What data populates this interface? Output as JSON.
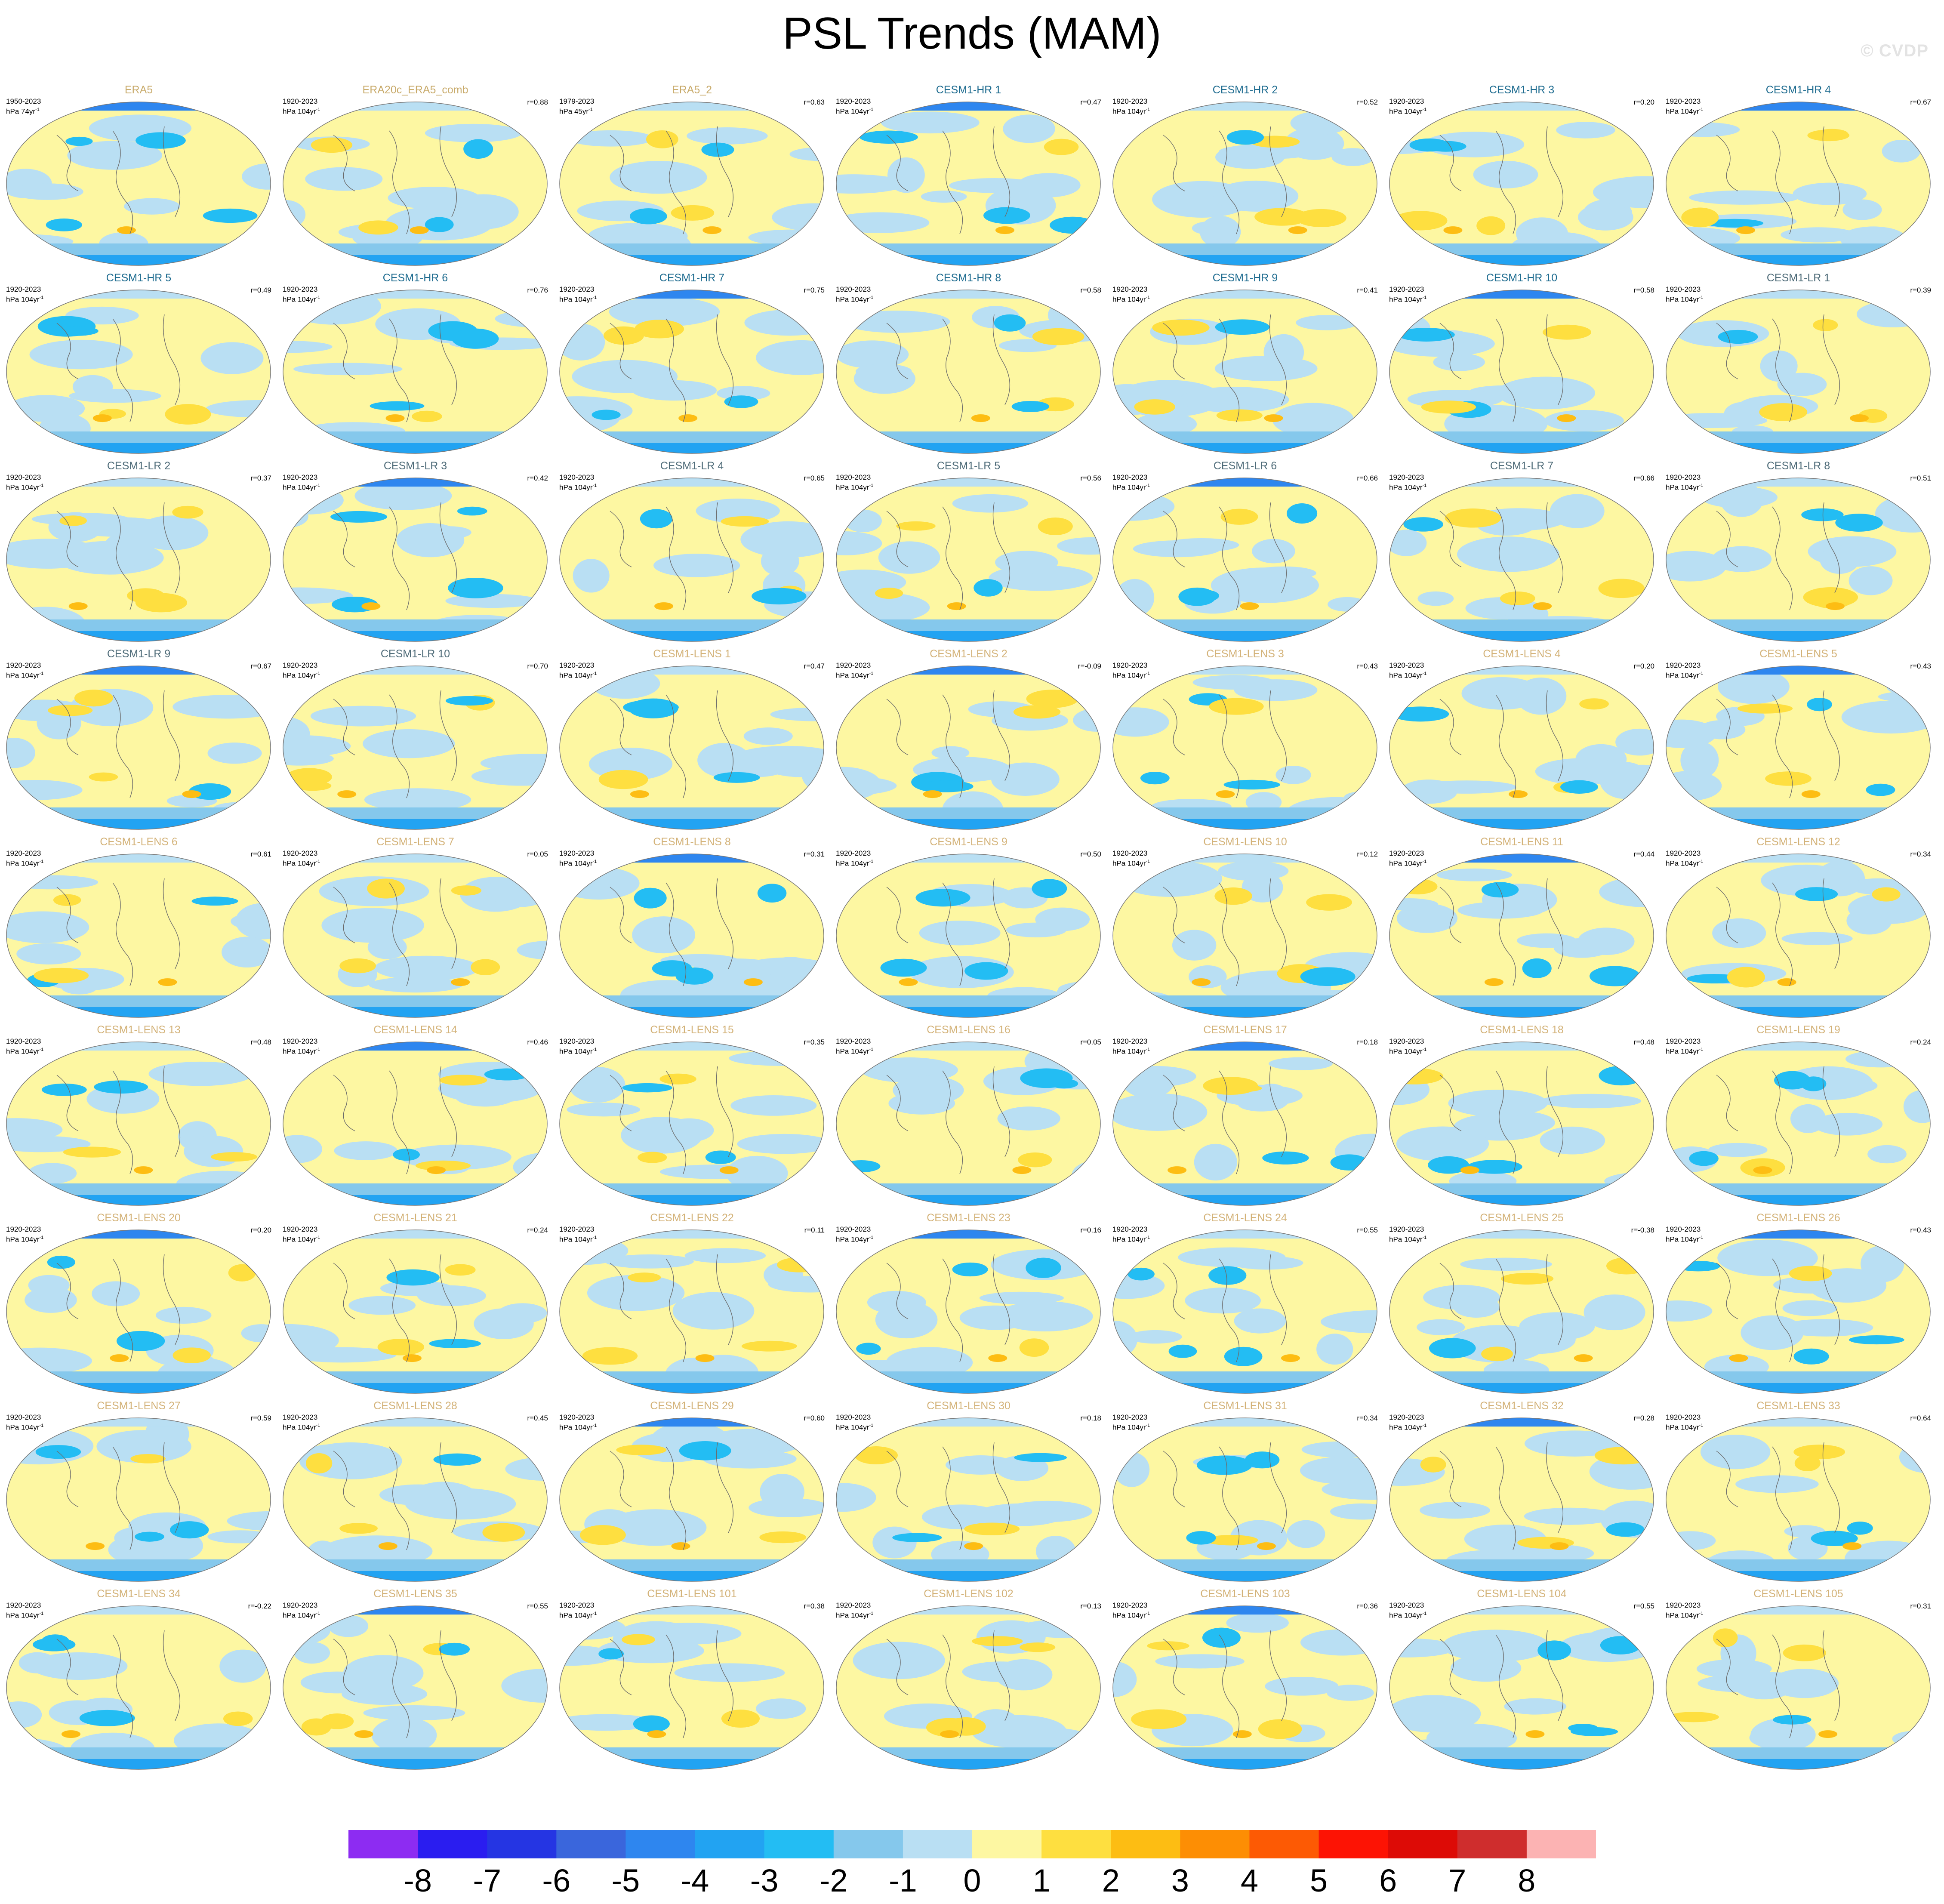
{
  "figure": {
    "title": "PSL Trends (MAM)",
    "watermark": "© CVDP"
  },
  "palette": {
    "levels": [
      "-8",
      "-7",
      "-6",
      "-5",
      "-4",
      "-3",
      "-2",
      "-1",
      "0",
      "1",
      "2",
      "3",
      "4",
      "5",
      "6",
      "7",
      "8"
    ],
    "colors": [
      "#8d2cf2",
      "#2a1df0",
      "#2535e3",
      "#3a66dc",
      "#2e86ef",
      "#22a3f2",
      "#23bdf3",
      "#85c8ec",
      "#b9dff3",
      "#fdf7a2",
      "#fedf40",
      "#fdbd13",
      "#fd8e04",
      "#fd5a04",
      "#fd1304",
      "#dd0b06",
      "#cf2d2d",
      "#fcb3b3"
    ]
  },
  "panels": [
    {
      "title": "ERA5",
      "period": "1950-2023",
      "units": "hPa 74yr",
      "r": "",
      "kind": "obs"
    },
    {
      "title": "ERA20c_ERA5_comb",
      "period": "1920-2023",
      "units": "hPa 104yr",
      "r": "r=0.88",
      "kind": "obs"
    },
    {
      "title": "ERA5_2",
      "period": "1979-2023",
      "units": "hPa 45yr",
      "r": "r=0.63",
      "kind": "obs"
    },
    {
      "title": "CESM1-HR 1",
      "period": "1920-2023",
      "units": "hPa 104yr",
      "r": "r=0.47",
      "kind": "hr"
    },
    {
      "title": "CESM1-HR 2",
      "period": "1920-2023",
      "units": "hPa 104yr",
      "r": "r=0.52",
      "kind": "hr"
    },
    {
      "title": "CESM1-HR 3",
      "period": "1920-2023",
      "units": "hPa 104yr",
      "r": "r=0.20",
      "kind": "hr"
    },
    {
      "title": "CESM1-HR 4",
      "period": "1920-2023",
      "units": "hPa 104yr",
      "r": "r=0.67",
      "kind": "hr"
    },
    {
      "title": "CESM1-HR 5",
      "period": "1920-2023",
      "units": "hPa 104yr",
      "r": "r=0.49",
      "kind": "hr"
    },
    {
      "title": "CESM1-HR 6",
      "period": "1920-2023",
      "units": "hPa 104yr",
      "r": "r=0.76",
      "kind": "hr"
    },
    {
      "title": "CESM1-HR 7",
      "period": "1920-2023",
      "units": "hPa 104yr",
      "r": "r=0.75",
      "kind": "hr"
    },
    {
      "title": "CESM1-HR 8",
      "period": "1920-2023",
      "units": "hPa 104yr",
      "r": "r=0.58",
      "kind": "hr"
    },
    {
      "title": "CESM1-HR 9",
      "period": "1920-2023",
      "units": "hPa 104yr",
      "r": "r=0.41",
      "kind": "hr"
    },
    {
      "title": "CESM1-HR 10",
      "period": "1920-2023",
      "units": "hPa 104yr",
      "r": "r=0.58",
      "kind": "hr"
    },
    {
      "title": "CESM1-LR 1",
      "period": "1920-2023",
      "units": "hPa 104yr",
      "r": "r=0.39",
      "kind": "lr"
    },
    {
      "title": "CESM1-LR 2",
      "period": "1920-2023",
      "units": "hPa 104yr",
      "r": "r=0.37",
      "kind": "lr"
    },
    {
      "title": "CESM1-LR 3",
      "period": "1920-2023",
      "units": "hPa 104yr",
      "r": "r=0.42",
      "kind": "lr"
    },
    {
      "title": "CESM1-LR 4",
      "period": "1920-2023",
      "units": "hPa 104yr",
      "r": "r=0.65",
      "kind": "lr"
    },
    {
      "title": "CESM1-LR 5",
      "period": "1920-2023",
      "units": "hPa 104yr",
      "r": "r=0.56",
      "kind": "lr"
    },
    {
      "title": "CESM1-LR 6",
      "period": "1920-2023",
      "units": "hPa 104yr",
      "r": "r=0.66",
      "kind": "lr"
    },
    {
      "title": "CESM1-LR 7",
      "period": "1920-2023",
      "units": "hPa 104yr",
      "r": "r=0.66",
      "kind": "lr"
    },
    {
      "title": "CESM1-LR 8",
      "period": "1920-2023",
      "units": "hPa 104yr",
      "r": "r=0.51",
      "kind": "lr"
    },
    {
      "title": "CESM1-LR 9",
      "period": "1920-2023",
      "units": "hPa 104yr",
      "r": "r=0.67",
      "kind": "lr"
    },
    {
      "title": "CESM1-LR 10",
      "period": "1920-2023",
      "units": "hPa 104yr",
      "r": "r=0.70",
      "kind": "lr"
    },
    {
      "title": "CESM1-LENS 1",
      "period": "1920-2023",
      "units": "hPa 104yr",
      "r": "r=0.47",
      "kind": "lens"
    },
    {
      "title": "CESM1-LENS 2",
      "period": "1920-2023",
      "units": "hPa 104yr",
      "r": "r=-0.09",
      "kind": "lens"
    },
    {
      "title": "CESM1-LENS 3",
      "period": "1920-2023",
      "units": "hPa 104yr",
      "r": "r=0.43",
      "kind": "lens"
    },
    {
      "title": "CESM1-LENS 4",
      "period": "1920-2023",
      "units": "hPa 104yr",
      "r": "r=0.20",
      "kind": "lens"
    },
    {
      "title": "CESM1-LENS 5",
      "period": "1920-2023",
      "units": "hPa 104yr",
      "r": "r=0.43",
      "kind": "lens"
    },
    {
      "title": "CESM1-LENS 6",
      "period": "1920-2023",
      "units": "hPa 104yr",
      "r": "r=0.61",
      "kind": "lens"
    },
    {
      "title": "CESM1-LENS 7",
      "period": "1920-2023",
      "units": "hPa 104yr",
      "r": "r=0.05",
      "kind": "lens"
    },
    {
      "title": "CESM1-LENS 8",
      "period": "1920-2023",
      "units": "hPa 104yr",
      "r": "r=0.31",
      "kind": "lens"
    },
    {
      "title": "CESM1-LENS 9",
      "period": "1920-2023",
      "units": "hPa 104yr",
      "r": "r=0.50",
      "kind": "lens"
    },
    {
      "title": "CESM1-LENS 10",
      "period": "1920-2023",
      "units": "hPa 104yr",
      "r": "r=0.12",
      "kind": "lens"
    },
    {
      "title": "CESM1-LENS 11",
      "period": "1920-2023",
      "units": "hPa 104yr",
      "r": "r=0.44",
      "kind": "lens"
    },
    {
      "title": "CESM1-LENS 12",
      "period": "1920-2023",
      "units": "hPa 104yr",
      "r": "r=0.34",
      "kind": "lens"
    },
    {
      "title": "CESM1-LENS 13",
      "period": "1920-2023",
      "units": "hPa 104yr",
      "r": "r=0.48",
      "kind": "lens"
    },
    {
      "title": "CESM1-LENS 14",
      "period": "1920-2023",
      "units": "hPa 104yr",
      "r": "r=0.46",
      "kind": "lens"
    },
    {
      "title": "CESM1-LENS 15",
      "period": "1920-2023",
      "units": "hPa 104yr",
      "r": "r=0.35",
      "kind": "lens"
    },
    {
      "title": "CESM1-LENS 16",
      "period": "1920-2023",
      "units": "hPa 104yr",
      "r": "r=0.05",
      "kind": "lens"
    },
    {
      "title": "CESM1-LENS 17",
      "period": "1920-2023",
      "units": "hPa 104yr",
      "r": "r=0.18",
      "kind": "lens"
    },
    {
      "title": "CESM1-LENS 18",
      "period": "1920-2023",
      "units": "hPa 104yr",
      "r": "r=0.48",
      "kind": "lens"
    },
    {
      "title": "CESM1-LENS 19",
      "period": "1920-2023",
      "units": "hPa 104yr",
      "r": "r=0.24",
      "kind": "lens"
    },
    {
      "title": "CESM1-LENS 20",
      "period": "1920-2023",
      "units": "hPa 104yr",
      "r": "r=0.20",
      "kind": "lens"
    },
    {
      "title": "CESM1-LENS 21",
      "period": "1920-2023",
      "units": "hPa 104yr",
      "r": "r=0.24",
      "kind": "lens"
    },
    {
      "title": "CESM1-LENS 22",
      "period": "1920-2023",
      "units": "hPa 104yr",
      "r": "r=0.11",
      "kind": "lens"
    },
    {
      "title": "CESM1-LENS 23",
      "period": "1920-2023",
      "units": "hPa 104yr",
      "r": "r=0.16",
      "kind": "lens"
    },
    {
      "title": "CESM1-LENS 24",
      "period": "1920-2023",
      "units": "hPa 104yr",
      "r": "r=0.55",
      "kind": "lens"
    },
    {
      "title": "CESM1-LENS 25",
      "period": "1920-2023",
      "units": "hPa 104yr",
      "r": "r=-0.38",
      "kind": "lens"
    },
    {
      "title": "CESM1-LENS 26",
      "period": "1920-2023",
      "units": "hPa 104yr",
      "r": "r=0.43",
      "kind": "lens"
    },
    {
      "title": "CESM1-LENS 27",
      "period": "1920-2023",
      "units": "hPa 104yr",
      "r": "r=0.59",
      "kind": "lens"
    },
    {
      "title": "CESM1-LENS 28",
      "period": "1920-2023",
      "units": "hPa 104yr",
      "r": "r=0.45",
      "kind": "lens"
    },
    {
      "title": "CESM1-LENS 29",
      "period": "1920-2023",
      "units": "hPa 104yr",
      "r": "r=0.60",
      "kind": "lens"
    },
    {
      "title": "CESM1-LENS 30",
      "period": "1920-2023",
      "units": "hPa 104yr",
      "r": "r=0.18",
      "kind": "lens"
    },
    {
      "title": "CESM1-LENS 31",
      "period": "1920-2023",
      "units": "hPa 104yr",
      "r": "r=0.34",
      "kind": "lens"
    },
    {
      "title": "CESM1-LENS 32",
      "period": "1920-2023",
      "units": "hPa 104yr",
      "r": "r=0.28",
      "kind": "lens"
    },
    {
      "title": "CESM1-LENS 33",
      "period": "1920-2023",
      "units": "hPa 104yr",
      "r": "r=0.64",
      "kind": "lens"
    },
    {
      "title": "CESM1-LENS 34",
      "period": "1920-2023",
      "units": "hPa 104yr",
      "r": "r=-0.22",
      "kind": "lens"
    },
    {
      "title": "CESM1-LENS 35",
      "period": "1920-2023",
      "units": "hPa 104yr",
      "r": "r=0.55",
      "kind": "lens"
    },
    {
      "title": "CESM1-LENS 101",
      "period": "1920-2023",
      "units": "hPa 104yr",
      "r": "r=0.38",
      "kind": "lens"
    },
    {
      "title": "CESM1-LENS 102",
      "period": "1920-2023",
      "units": "hPa 104yr",
      "r": "r=0.13",
      "kind": "lens"
    },
    {
      "title": "CESM1-LENS 103",
      "period": "1920-2023",
      "units": "hPa 104yr",
      "r": "r=0.36",
      "kind": "lens"
    },
    {
      "title": "CESM1-LENS 104",
      "period": "1920-2023",
      "units": "hPa 104yr",
      "r": "r=0.55",
      "kind": "lens"
    },
    {
      "title": "CESM1-LENS 105",
      "period": "1920-2023",
      "units": "hPa 104yr",
      "r": "r=0.31",
      "kind": "lens"
    }
  ]
}
